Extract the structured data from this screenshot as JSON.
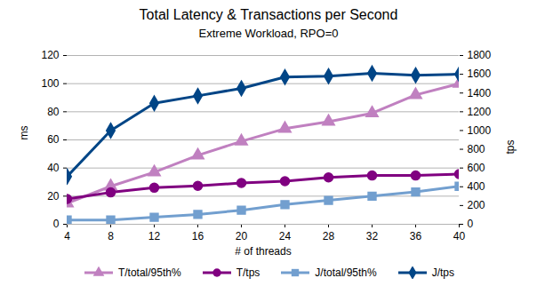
{
  "chart_data": {
    "type": "line",
    "title": "Total Latency & Transactions per Second",
    "subtitle": "Extreme Workload, RPO=0",
    "x_label": "# of threads",
    "y_label": "ms",
    "y2_label": "tps",
    "x": [
      4,
      8,
      12,
      16,
      20,
      24,
      28,
      32,
      36,
      40
    ],
    "xlim": [
      4,
      40
    ],
    "xticks": [
      4,
      8,
      12,
      16,
      20,
      24,
      28,
      32,
      36,
      40
    ],
    "ylim": [
      0,
      120
    ],
    "yticks": [
      0,
      20,
      40,
      60,
      80,
      100,
      120
    ],
    "y2lim": [
      0,
      1800
    ],
    "y2ticks": [
      0,
      200,
      400,
      600,
      800,
      1000,
      1200,
      1400,
      1600,
      1800
    ],
    "grid": true,
    "legend": "bottom",
    "series": [
      {
        "name": "T/total/95th%",
        "color": "#c080c0",
        "marker": "triangle",
        "axis": "y",
        "values": [
          15,
          27,
          37,
          49,
          59,
          68,
          73,
          79,
          92,
          100
        ]
      },
      {
        "name": "T/tps",
        "color": "#800080",
        "marker": "circle",
        "axis": "y2",
        "values": [
          270,
          340,
          390,
          410,
          440,
          460,
          500,
          520,
          520,
          535
        ]
      },
      {
        "name": "J/total/95th%",
        "color": "#729fcf",
        "marker": "square",
        "axis": "y",
        "values": [
          3,
          3,
          5,
          7,
          10,
          14,
          17,
          20,
          23,
          27
        ]
      },
      {
        "name": "J/tps",
        "color": "#004586",
        "marker": "diamond",
        "axis": "y2",
        "values": [
          510,
          1000,
          1290,
          1370,
          1450,
          1570,
          1580,
          1610,
          1590,
          1600
        ]
      }
    ]
  }
}
